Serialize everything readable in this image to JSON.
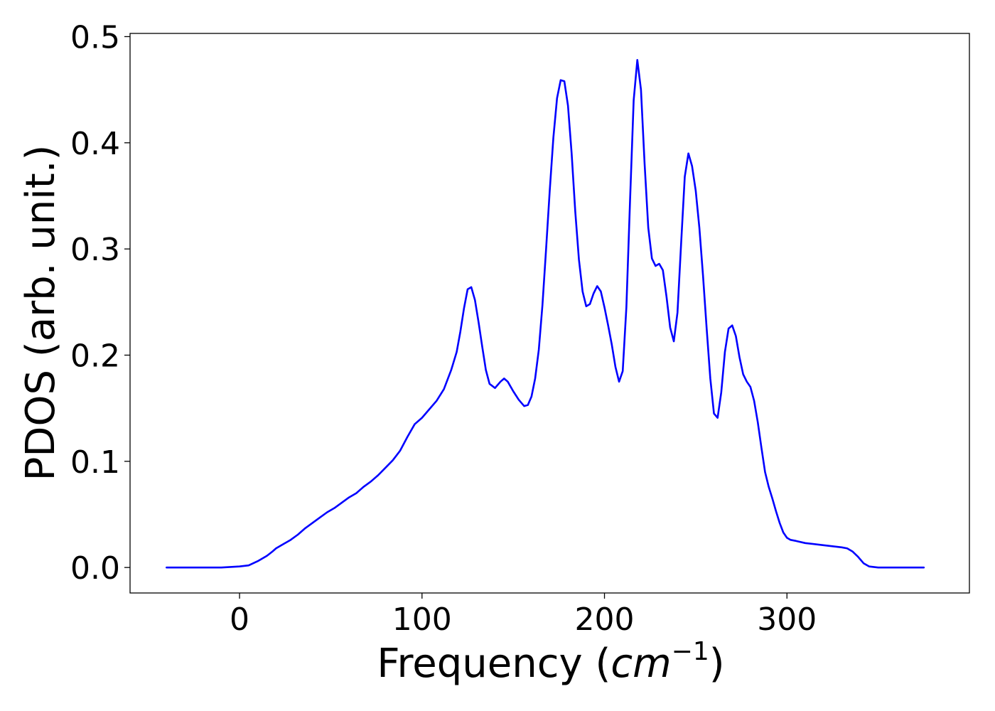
{
  "chart_data": {
    "type": "line",
    "title": "",
    "xlabel_prefix": "Frequency (",
    "xlabel_var": "cm",
    "xlabel_exp": "−1",
    "xlabel_suffix": ")",
    "ylabel": "PDOS (arb. unit.)",
    "xlim": [
      -60,
      400
    ],
    "ylim": [
      -0.024,
      0.503
    ],
    "xticks": [
      0,
      100,
      200,
      300
    ],
    "xtick_labels": [
      "0",
      "100",
      "200",
      "300"
    ],
    "yticks": [
      0.0,
      0.1,
      0.2,
      0.3,
      0.4,
      0.5
    ],
    "ytick_labels": [
      "0.0",
      "0.1",
      "0.2",
      "0.3",
      "0.4",
      "0.5"
    ],
    "grid": false,
    "series": [
      {
        "color": "#0000ff",
        "x": [
          -40,
          -20,
          -10,
          0,
          5,
          10,
          15,
          18,
          20,
          24,
          28,
          32,
          36,
          40,
          44,
          48,
          52,
          56,
          60,
          64,
          68,
          72,
          76,
          80,
          84,
          88,
          92,
          96,
          100,
          104,
          108,
          112,
          116,
          119,
          121,
          123,
          125,
          127,
          129,
          131,
          133,
          135,
          137,
          140,
          143,
          145,
          147,
          150,
          153,
          156,
          158,
          160,
          162,
          164,
          166,
          168,
          170,
          172,
          174,
          176,
          178,
          180,
          182,
          184,
          186,
          188,
          190,
          192,
          194,
          196,
          198,
          200,
          202,
          204,
          206,
          208,
          210,
          212,
          214,
          216,
          218,
          220,
          222,
          224,
          226,
          228,
          230,
          232,
          234,
          236,
          238,
          240,
          242,
          244,
          246,
          248,
          250,
          252,
          254,
          256,
          258,
          260,
          262,
          264,
          266,
          268,
          270,
          272,
          274,
          276,
          278,
          280,
          282,
          284,
          286,
          288,
          290,
          292,
          294,
          296,
          298,
          300,
          302,
          305,
          310,
          320,
          330,
          333,
          336,
          339,
          342,
          345,
          350,
          360,
          375
        ],
        "y": [
          0.0,
          0.0,
          0.0,
          0.001,
          0.002,
          0.006,
          0.011,
          0.015,
          0.018,
          0.022,
          0.026,
          0.031,
          0.037,
          0.042,
          0.047,
          0.052,
          0.056,
          0.061,
          0.066,
          0.07,
          0.076,
          0.081,
          0.087,
          0.094,
          0.101,
          0.11,
          0.123,
          0.135,
          0.141,
          0.149,
          0.157,
          0.168,
          0.186,
          0.203,
          0.222,
          0.244,
          0.262,
          0.264,
          0.252,
          0.231,
          0.208,
          0.186,
          0.173,
          0.169,
          0.175,
          0.178,
          0.175,
          0.166,
          0.158,
          0.152,
          0.153,
          0.161,
          0.178,
          0.205,
          0.247,
          0.3,
          0.355,
          0.405,
          0.442,
          0.459,
          0.458,
          0.435,
          0.39,
          0.335,
          0.29,
          0.26,
          0.246,
          0.248,
          0.258,
          0.265,
          0.26,
          0.245,
          0.228,
          0.21,
          0.189,
          0.175,
          0.185,
          0.245,
          0.345,
          0.44,
          0.478,
          0.45,
          0.38,
          0.32,
          0.291,
          0.284,
          0.286,
          0.28,
          0.255,
          0.226,
          0.213,
          0.24,
          0.305,
          0.368,
          0.39,
          0.378,
          0.355,
          0.32,
          0.275,
          0.225,
          0.178,
          0.145,
          0.141,
          0.165,
          0.203,
          0.225,
          0.228,
          0.218,
          0.198,
          0.182,
          0.175,
          0.17,
          0.157,
          0.137,
          0.113,
          0.09,
          0.076,
          0.065,
          0.053,
          0.042,
          0.033,
          0.028,
          0.026,
          0.025,
          0.023,
          0.021,
          0.019,
          0.018,
          0.015,
          0.01,
          0.004,
          0.001,
          0.0,
          0.0,
          0.0
        ]
      }
    ]
  }
}
